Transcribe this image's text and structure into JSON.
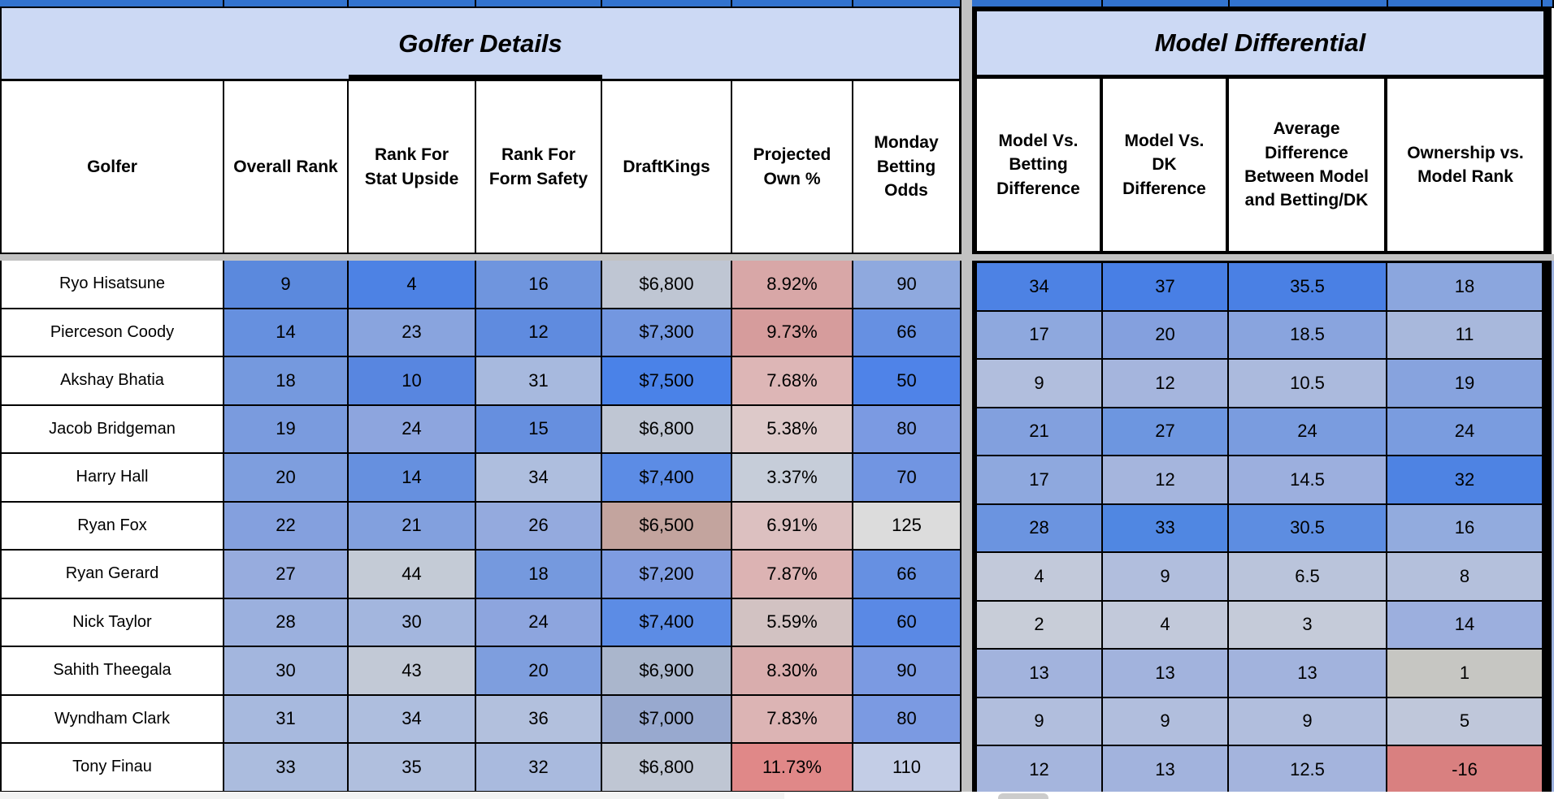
{
  "sections": {
    "left": {
      "title": "Golfer Details",
      "columns": [
        "Golfer",
        "Overall Rank",
        "Rank For Stat Upside",
        "Rank For Form Safety",
        "DraftKings",
        "Projected Own %",
        "Monday Betting Odds"
      ]
    },
    "right": {
      "title": "Model Differential",
      "columns": [
        "Model Vs. Betting Difference",
        "Model Vs. DK Difference",
        "Average Difference Between Model and Betting/DK",
        "Ownership vs. Model Rank"
      ]
    }
  },
  "colors": {
    "top_strip_blue": "#3273cf",
    "banner_blue": "#ccd9f4",
    "pane_divider_gray": "#c2c2c2",
    "scale_strong_blue": "#4a82e8",
    "scale_mid_gray": "#c8cdd8",
    "scale_strong_red": "#d98080"
  },
  "rows": [
    {
      "golfer": "Ryo Hisatsune",
      "left": [
        {
          "v": "9",
          "bg": "#5b89dd"
        },
        {
          "v": "4",
          "bg": "#4d82e4"
        },
        {
          "v": "16",
          "bg": "#6f95de"
        },
        {
          "v": "$6,800",
          "bg": "#bfc6d3"
        },
        {
          "v": "8.92%",
          "bg": "#d8a7a7"
        },
        {
          "v": "90",
          "bg": "#8fa9de"
        }
      ],
      "right": [
        {
          "v": "34",
          "bg": "#4d82e4"
        },
        {
          "v": "37",
          "bg": "#487fe5"
        },
        {
          "v": "35.5",
          "bg": "#4a80e4"
        },
        {
          "v": "18",
          "bg": "#8ba6de"
        }
      ]
    },
    {
      "golfer": "Pierceson Coody",
      "left": [
        {
          "v": "14",
          "bg": "#6690df"
        },
        {
          "v": "23",
          "bg": "#89a4de"
        },
        {
          "v": "12",
          "bg": "#5f8bdf"
        },
        {
          "v": "$7,300",
          "bg": "#7397e0"
        },
        {
          "v": "9.73%",
          "bg": "#d69c9c"
        },
        {
          "v": "66",
          "bg": "#6690e2"
        }
      ],
      "right": [
        {
          "v": "17",
          "bg": "#8ea8de"
        },
        {
          "v": "20",
          "bg": "#84a0de"
        },
        {
          "v": "18.5",
          "bg": "#89a4de"
        },
        {
          "v": "11",
          "bg": "#a8b8dc"
        }
      ]
    },
    {
      "golfer": "Akshay Bhatia",
      "left": [
        {
          "v": "18",
          "bg": "#7599de"
        },
        {
          "v": "10",
          "bg": "#5886e0"
        },
        {
          "v": "31",
          "bg": "#a7b9de"
        },
        {
          "v": "$7,500",
          "bg": "#4a82e8"
        },
        {
          "v": "7.68%",
          "bg": "#ddb6b6"
        },
        {
          "v": "50",
          "bg": "#4f83e8"
        }
      ],
      "right": [
        {
          "v": "9",
          "bg": "#b1bedd"
        },
        {
          "v": "12",
          "bg": "#a5b5dd"
        },
        {
          "v": "10.5",
          "bg": "#abbadd"
        },
        {
          "v": "19",
          "bg": "#87a3de"
        }
      ]
    },
    {
      "golfer": "Jacob Bridgeman",
      "left": [
        {
          "v": "19",
          "bg": "#7a9bde"
        },
        {
          "v": "24",
          "bg": "#8da5de"
        },
        {
          "v": "15",
          "bg": "#668fdf"
        },
        {
          "v": "$6,800",
          "bg": "#bfc6d3"
        },
        {
          "v": "5.38%",
          "bg": "#ddc9c9"
        },
        {
          "v": "80",
          "bg": "#7b9ae2"
        }
      ],
      "right": [
        {
          "v": "21",
          "bg": "#82a0de"
        },
        {
          "v": "27",
          "bg": "#6d96e0"
        },
        {
          "v": "24",
          "bg": "#7a9cdf"
        },
        {
          "v": "24",
          "bg": "#7a9cdf"
        }
      ]
    },
    {
      "golfer": "Harry Hall",
      "left": [
        {
          "v": "20",
          "bg": "#7e9ede"
        },
        {
          "v": "14",
          "bg": "#6690df"
        },
        {
          "v": "34",
          "bg": "#aebede"
        },
        {
          "v": "$7,400",
          "bg": "#5c8ce5"
        },
        {
          "v": "3.37%",
          "bg": "#c6cdd9"
        },
        {
          "v": "70",
          "bg": "#7195e2"
        }
      ],
      "right": [
        {
          "v": "17",
          "bg": "#8ea8de"
        },
        {
          "v": "12",
          "bg": "#a5b5dd"
        },
        {
          "v": "14.5",
          "bg": "#9cafde"
        },
        {
          "v": "32",
          "bg": "#4e83e3"
        }
      ]
    },
    {
      "golfer": "Ryan Fox",
      "left": [
        {
          "v": "22",
          "bg": "#84a0de"
        },
        {
          "v": "21",
          "bg": "#82a0de"
        },
        {
          "v": "26",
          "bg": "#94aade"
        },
        {
          "v": "$6,500",
          "bg": "#c3a49e"
        },
        {
          "v": "6.91%",
          "bg": "#dcc0c0"
        },
        {
          "v": "125",
          "bg": "#dcdcdc"
        }
      ],
      "right": [
        {
          "v": "28",
          "bg": "#6b94e0"
        },
        {
          "v": "33",
          "bg": "#5087e2"
        },
        {
          "v": "30.5",
          "bg": "#5d8de1"
        },
        {
          "v": "16",
          "bg": "#92abde"
        }
      ]
    },
    {
      "golfer": "Ryan Gerard",
      "left": [
        {
          "v": "27",
          "bg": "#97acde"
        },
        {
          "v": "44",
          "bg": "#c4cbd6"
        },
        {
          "v": "18",
          "bg": "#7599de"
        },
        {
          "v": "$7,200",
          "bg": "#7e9ce1"
        },
        {
          "v": "7.87%",
          "bg": "#dcb3b3"
        },
        {
          "v": "66",
          "bg": "#6690e2"
        }
      ],
      "right": [
        {
          "v": "4",
          "bg": "#c2c9da"
        },
        {
          "v": "9",
          "bg": "#b1bedd"
        },
        {
          "v": "6.5",
          "bg": "#bac4db"
        },
        {
          "v": "8",
          "bg": "#b4c0dc"
        }
      ]
    },
    {
      "golfer": "Nick Taylor",
      "left": [
        {
          "v": "28",
          "bg": "#9bb0de"
        },
        {
          "v": "30",
          "bg": "#a3b6de"
        },
        {
          "v": "24",
          "bg": "#8da5de"
        },
        {
          "v": "$7,400",
          "bg": "#5c8ce5"
        },
        {
          "v": "5.59%",
          "bg": "#d2c2c2"
        },
        {
          "v": "60",
          "bg": "#5a89e5"
        }
      ],
      "right": [
        {
          "v": "2",
          "bg": "#c8cdd8"
        },
        {
          "v": "4",
          "bg": "#c2c9da"
        },
        {
          "v": "3",
          "bg": "#c5cbd9"
        },
        {
          "v": "14",
          "bg": "#9cafde"
        }
      ]
    },
    {
      "golfer": "Sahith Theegala",
      "left": [
        {
          "v": "30",
          "bg": "#a3b6de"
        },
        {
          "v": "43",
          "bg": "#c2c9d6"
        },
        {
          "v": "20",
          "bg": "#7e9ede"
        },
        {
          "v": "$6,900",
          "bg": "#aab6cc"
        },
        {
          "v": "8.30%",
          "bg": "#d9adad"
        },
        {
          "v": "90",
          "bg": "#7b9ae2"
        }
      ],
      "right": [
        {
          "v": "13",
          "bg": "#a2b3dd"
        },
        {
          "v": "13",
          "bg": "#a2b3dd"
        },
        {
          "v": "13",
          "bg": "#a2b3dd"
        },
        {
          "v": "1",
          "bg": "#c6c6c2"
        }
      ]
    },
    {
      "golfer": "Wyndham Clark",
      "left": [
        {
          "v": "31",
          "bg": "#a7b9de"
        },
        {
          "v": "34",
          "bg": "#aebede"
        },
        {
          "v": "36",
          "bg": "#b2c0dd"
        },
        {
          "v": "$7,000",
          "bg": "#98a9cf"
        },
        {
          "v": "7.83%",
          "bg": "#dcb4b4"
        },
        {
          "v": "80",
          "bg": "#7b9ae2"
        }
      ],
      "right": [
        {
          "v": "9",
          "bg": "#b1bedd"
        },
        {
          "v": "9",
          "bg": "#b1bedd"
        },
        {
          "v": "9",
          "bg": "#b1bedd"
        },
        {
          "v": "5",
          "bg": "#bfc7da"
        }
      ]
    },
    {
      "golfer": "Tony Finau",
      "left": [
        {
          "v": "33",
          "bg": "#abbcde"
        },
        {
          "v": "35",
          "bg": "#b0bfde"
        },
        {
          "v": "32",
          "bg": "#a9bade"
        },
        {
          "v": "$6,800",
          "bg": "#bfc6d3"
        },
        {
          "v": "11.73%",
          "bg": "#e08888"
        },
        {
          "v": "110",
          "bg": "#c3cde6"
        }
      ],
      "right": [
        {
          "v": "12",
          "bg": "#a5b5dd"
        },
        {
          "v": "13",
          "bg": "#a2b3dd"
        },
        {
          "v": "12.5",
          "bg": "#a4b4dd"
        },
        {
          "v": "-16",
          "bg": "#d98080"
        }
      ]
    }
  ]
}
